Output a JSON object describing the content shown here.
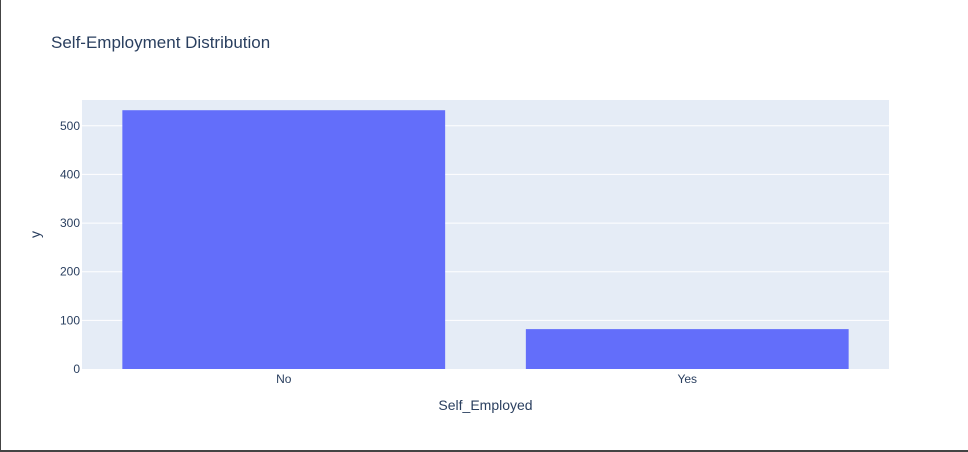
{
  "chart_data": {
    "type": "bar",
    "title": "Self-Employment Distribution",
    "xlabel": "Self_Employed",
    "ylabel": "y",
    "categories": [
      "No",
      "Yes"
    ],
    "values": [
      532,
      82
    ],
    "ylim": [
      0,
      553
    ],
    "yticks": [
      0,
      100,
      200,
      300,
      400,
      500
    ],
    "grid": true,
    "legend": "none",
    "colors": {
      "bar": "#636efa",
      "plot_bg": "#e5ecf6",
      "grid": "#ffffff",
      "text": "#2a3f5f"
    }
  }
}
